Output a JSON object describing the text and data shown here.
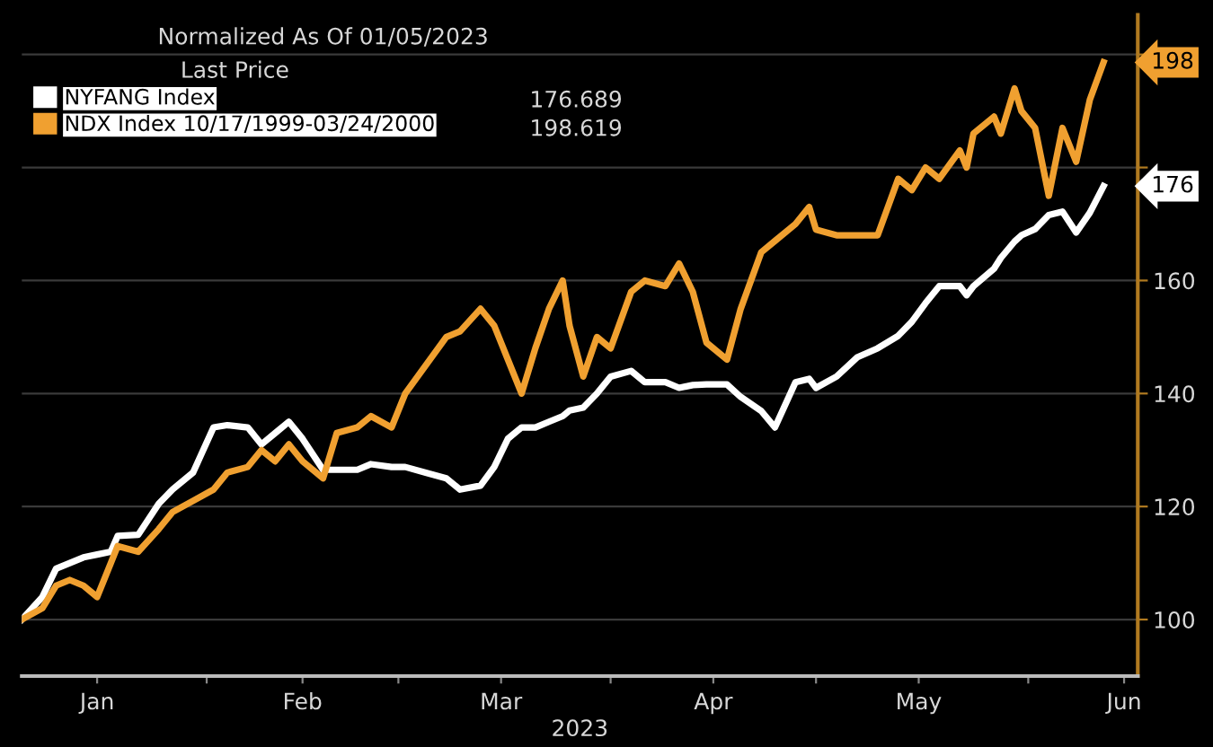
{
  "chart_data": {
    "type": "line",
    "title": "Normalized As Of 01/05/2023",
    "legend_title": "Last Price",
    "xlabel": "2023",
    "x": [
      "2023-01-05",
      "2023-01-08",
      "2023-01-10",
      "2023-01-12",
      "2023-01-14",
      "2023-01-16",
      "2023-01-18",
      "2023-01-19",
      "2023-01-22",
      "2023-01-25",
      "2023-01-27",
      "2023-01-30",
      "2023-02-02",
      "2023-02-04",
      "2023-02-07",
      "2023-02-09",
      "2023-02-11",
      "2023-02-13",
      "2023-02-15",
      "2023-02-18",
      "2023-02-20",
      "2023-02-23",
      "2023-02-25",
      "2023-02-28",
      "2023-03-02",
      "2023-03-05",
      "2023-03-08",
      "2023-03-10",
      "2023-03-13",
      "2023-03-15",
      "2023-03-17",
      "2023-03-19",
      "2023-03-21",
      "2023-03-23",
      "2023-03-25",
      "2023-03-26",
      "2023-03-28",
      "2023-03-30",
      "2023-04-01",
      "2023-04-04",
      "2023-04-06",
      "2023-04-09",
      "2023-04-11",
      "2023-04-13",
      "2023-04-15",
      "2023-04-18",
      "2023-04-20",
      "2023-04-23",
      "2023-04-25",
      "2023-04-28",
      "2023-04-30",
      "2023-05-01",
      "2023-05-04",
      "2023-05-07",
      "2023-05-10",
      "2023-05-13",
      "2023-05-15",
      "2023-05-17",
      "2023-05-19",
      "2023-05-22",
      "2023-05-23",
      "2023-05-24",
      "2023-05-27",
      "2023-05-28",
      "2023-05-30",
      "2023-05-31",
      "2023-06-02",
      "2023-06-04",
      "2023-06-06",
      "2023-06-08",
      "2023-06-10",
      "2023-06-12"
    ],
    "series": [
      {
        "name": "NYFANG Index",
        "color": "#ffffff",
        "values": [
          100,
          104,
          109,
          110,
          111,
          111.5,
          112,
          114.8,
          115,
          120.5,
          123,
          126,
          134,
          134.4,
          134,
          131,
          133,
          135,
          132,
          126.5,
          126.5,
          126.5,
          127.5,
          127,
          127,
          126,
          125,
          123,
          123.7,
          127,
          132,
          134,
          134,
          135,
          136,
          137,
          137.5,
          140,
          143,
          144,
          142,
          142,
          141,
          141.5,
          141.6,
          141.6,
          139.4,
          136.9,
          134,
          142,
          142.6,
          141,
          143,
          146.4,
          148,
          150.2,
          152.7,
          156,
          159,
          159,
          157.4,
          159,
          162.1,
          164,
          166.9,
          168,
          169.1,
          171.6,
          172.2,
          168.5,
          172,
          176.7
        ]
      },
      {
        "name": "NDX Index 10/17/1999-03/24/2000",
        "color": "#f0a030",
        "values": [
          100,
          102,
          106,
          107,
          106,
          104,
          110,
          113,
          112,
          116,
          119,
          121,
          123,
          126,
          127,
          130,
          128,
          131,
          128,
          125,
          133,
          134,
          136,
          134,
          140,
          145,
          150,
          151,
          155,
          152,
          146,
          140,
          148,
          155,
          160,
          152,
          143,
          150,
          148,
          158,
          160,
          159,
          163,
          158,
          149,
          146,
          155,
          165,
          167,
          170,
          173,
          169,
          168,
          168,
          168,
          178,
          176,
          180,
          178,
          183,
          180,
          186,
          189,
          186,
          194,
          190,
          187,
          175,
          187,
          181,
          192,
          198.6
        ]
      }
    ],
    "annotations": [
      "176.689",
      "198.619",
      {
        "text": "176",
        "x": "2023-06-12",
        "y": 176.7
      },
      {
        "text": "198",
        "x": "2023-06-12",
        "y": 198.6
      }
    ],
    "xlim": [
      "2023-01-05",
      "2023-06-17"
    ],
    "xticks": [
      {
        "value": "2023-01-16",
        "label": "Jan"
      },
      {
        "value": "2023-02-01",
        "label": null
      },
      {
        "value": "2023-02-15",
        "label": "Feb"
      },
      {
        "value": "2023-03-01",
        "label": null
      },
      {
        "value": "2023-03-16",
        "label": "Mar"
      },
      {
        "value": "2023-04-01",
        "label": null
      },
      {
        "value": "2023-04-16",
        "label": "Apr"
      },
      {
        "value": "2023-05-01",
        "label": null
      },
      {
        "value": "2023-05-16",
        "label": "May"
      },
      {
        "value": "2023-06-01",
        "label": null
      },
      {
        "value": "2023-06-15",
        "label": "Jun"
      }
    ],
    "ylim": [
      90,
      207
    ],
    "yticks": [
      100,
      120,
      140,
      160,
      {
        "value": 180,
        "label": null
      },
      {
        "value": 200,
        "label": null
      }
    ],
    "grid": "y",
    "legend": "top left",
    "marker": "none",
    "line_style": "solid"
  }
}
